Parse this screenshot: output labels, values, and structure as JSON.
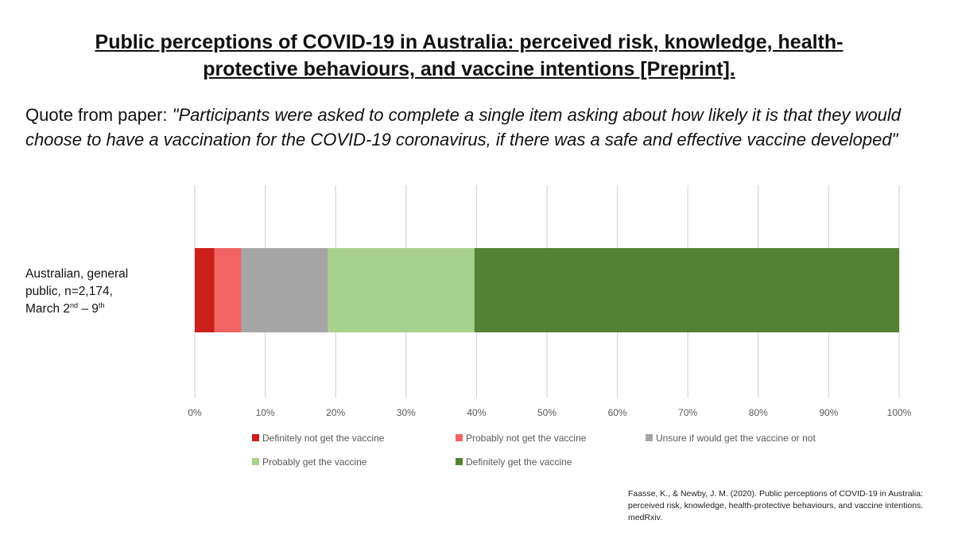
{
  "title_lines": [
    "Public perceptions of COVID-19 in Australia: perceived risk, knowledge, health-",
    "protective behaviours, and vaccine intentions [Preprint]."
  ],
  "quote": {
    "prefix": "Quote from paper: ",
    "text": "\"Participants were asked to complete a single item asking about how likely it is that they would choose to have a vaccination for the COVID-19 coronavirus, if there was a safe and effective vaccine developed\""
  },
  "category_label": {
    "line1": "Australian, general",
    "line2": "public, n=2,174,",
    "line3_prefix": "March 2",
    "sup1": "nd",
    "line3_mid": " – 9",
    "sup2": "th"
  },
  "source_citation": "Faasse, K., & Newby, J. M. (2020). Public perceptions of COVID-19 in Australia: perceived risk, knowledge, health-protective behaviours, and vaccine intentions. medRxiv.",
  "chart_data": {
    "type": "bar",
    "orientation": "horizontal",
    "stacked": true,
    "categories": [
      "Australian, general public, n=2,174, March 2nd – 9th"
    ],
    "series": [
      {
        "name": "Definitely not get the vaccine",
        "values": [
          2.8
        ],
        "color": "#cc1f1a"
      },
      {
        "name": "Probably not get the vaccine",
        "values": [
          3.8
        ],
        "color": "#f26464"
      },
      {
        "name": "Unsure if would get the vaccine or not",
        "values": [
          12.3
        ],
        "color": "#a6a6a6"
      },
      {
        "name": "Probably get the vaccine",
        "values": [
          20.8
        ],
        "color": "#a9d18e"
      },
      {
        "name": "Definitely get the vaccine",
        "values": [
          60.3
        ],
        "color": "#548235"
      }
    ],
    "xlim": [
      0,
      100
    ],
    "xticks": [
      "0%",
      "10%",
      "20%",
      "30%",
      "40%",
      "50%",
      "60%",
      "70%",
      "80%",
      "90%",
      "100%"
    ],
    "grid": true,
    "legend_position": "bottom"
  }
}
